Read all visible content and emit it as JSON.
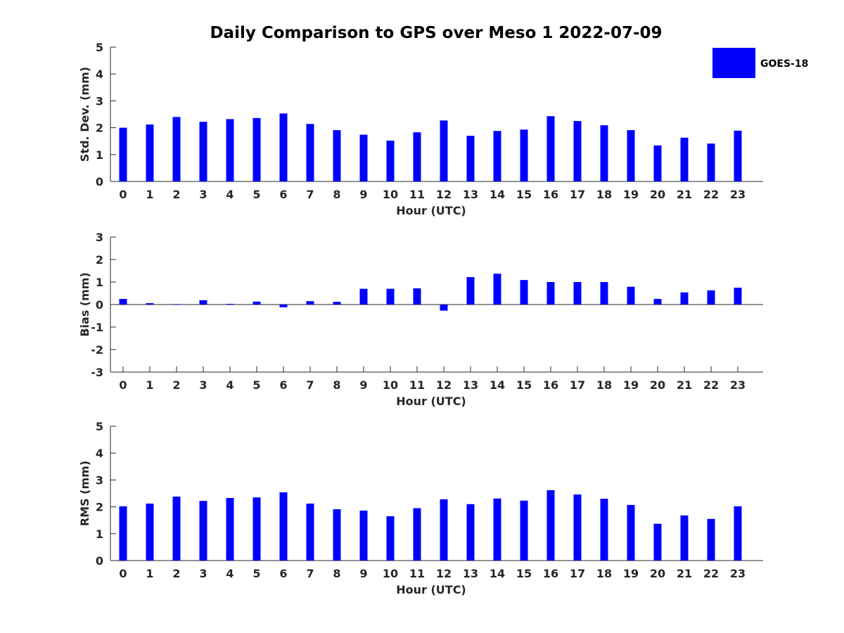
{
  "title": "Daily Comparison to GPS over Meso 1 2022-07-09",
  "legend": {
    "label": "GOES-18",
    "color": "#0000ff",
    "placement": "top-right"
  },
  "chart_data": [
    {
      "type": "bar",
      "title": "Daily Comparison to GPS over Meso 1 2022-07-09",
      "xlabel": "Hour (UTC)",
      "ylabel": "Std. Dev. (mm)",
      "ylim": [
        0,
        5
      ],
      "yticks": [
        "0",
        "1",
        "2",
        "3",
        "4",
        "5"
      ],
      "categories": [
        "0",
        "1",
        "2",
        "3",
        "4",
        "5",
        "6",
        "7",
        "8",
        "9",
        "10",
        "11",
        "12",
        "13",
        "14",
        "15",
        "16",
        "17",
        "18",
        "19",
        "20",
        "21",
        "22",
        "23"
      ],
      "series": [
        {
          "name": "GOES-18",
          "color": "#0000ff",
          "values": [
            2.0,
            2.12,
            2.4,
            2.22,
            2.32,
            2.36,
            2.53,
            2.14,
            1.91,
            1.74,
            1.52,
            1.83,
            2.27,
            1.7,
            1.88,
            1.93,
            2.43,
            2.25,
            2.09,
            1.91,
            1.34,
            1.63,
            1.41,
            1.89
          ]
        }
      ]
    },
    {
      "type": "bar",
      "xlabel": "Hour (UTC)",
      "ylabel": "Bias (mm)",
      "ylim": [
        -3,
        3
      ],
      "yticks": [
        "-3",
        "-2",
        "-1",
        "0",
        "1",
        "2",
        "3"
      ],
      "categories": [
        "0",
        "1",
        "2",
        "3",
        "4",
        "5",
        "6",
        "7",
        "8",
        "9",
        "10",
        "11",
        "12",
        "13",
        "14",
        "15",
        "16",
        "17",
        "18",
        "19",
        "20",
        "21",
        "22",
        "23"
      ],
      "series": [
        {
          "name": "GOES-18",
          "color": "#0000ff",
          "values": [
            0.25,
            0.06,
            0.02,
            0.19,
            0.03,
            0.13,
            -0.12,
            0.15,
            0.12,
            0.7,
            0.7,
            0.72,
            -0.27,
            1.22,
            1.37,
            1.09,
            1.0,
            1.0,
            1.0,
            0.79,
            0.25,
            0.54,
            0.63,
            0.75
          ]
        }
      ]
    },
    {
      "type": "bar",
      "xlabel": "Hour (UTC)",
      "ylabel": "RMS (mm)",
      "ylim": [
        0,
        5
      ],
      "yticks": [
        "0",
        "1",
        "2",
        "3",
        "4",
        "5"
      ],
      "categories": [
        "0",
        "1",
        "2",
        "3",
        "4",
        "5",
        "6",
        "7",
        "8",
        "9",
        "10",
        "11",
        "12",
        "13",
        "14",
        "15",
        "16",
        "17",
        "18",
        "19",
        "20",
        "21",
        "22",
        "23"
      ],
      "series": [
        {
          "name": "GOES-18",
          "color": "#0000ff",
          "values": [
            2.02,
            2.12,
            2.38,
            2.22,
            2.33,
            2.35,
            2.54,
            2.12,
            1.91,
            1.86,
            1.65,
            1.95,
            2.28,
            2.1,
            2.31,
            2.23,
            2.62,
            2.46,
            2.3,
            2.07,
            1.37,
            1.68,
            1.55,
            2.02
          ]
        }
      ]
    }
  ]
}
